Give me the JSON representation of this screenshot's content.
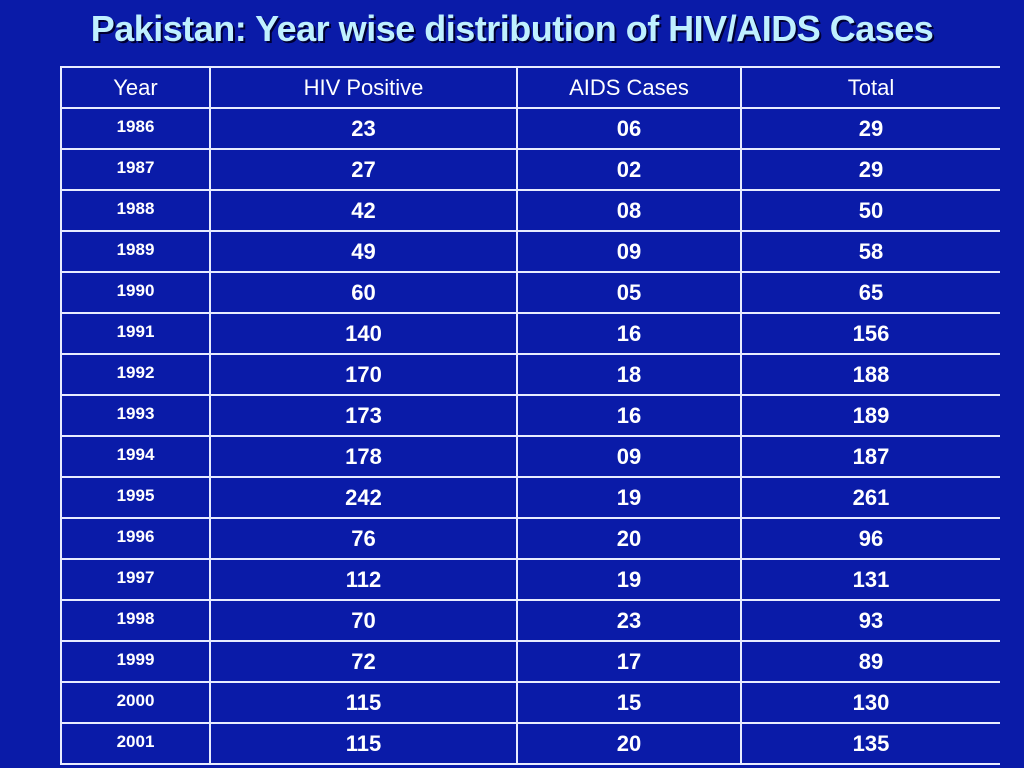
{
  "title": "Pakistan: Year wise distribution of HIV/AIDS Cases",
  "table": {
    "headers": [
      "Year",
      "HIV Positive",
      "AIDS Cases",
      "Total"
    ],
    "rows": [
      [
        "1986",
        "23",
        "06",
        "29"
      ],
      [
        "1987",
        "27",
        "02",
        "29"
      ],
      [
        "1988",
        "42",
        "08",
        "50"
      ],
      [
        "1989",
        "49",
        "09",
        "58"
      ],
      [
        "1990",
        "60",
        "05",
        "65"
      ],
      [
        "1991",
        "140",
        "16",
        "156"
      ],
      [
        "1992",
        "170",
        "18",
        "188"
      ],
      [
        "1993",
        "173",
        "16",
        "189"
      ],
      [
        "1994",
        "178",
        "09",
        "187"
      ],
      [
        "1995",
        "242",
        "19",
        "261"
      ],
      [
        "1996",
        "76",
        "20",
        "96"
      ],
      [
        "1997",
        "112",
        "19",
        "131"
      ],
      [
        "1998",
        "70",
        "23",
        "93"
      ],
      [
        "1999",
        "72",
        "17",
        "89"
      ],
      [
        "2000",
        "115",
        "15",
        "130"
      ],
      [
        "2001",
        "115",
        "20",
        "135"
      ]
    ]
  },
  "colors": {
    "background": "#0a1ba8",
    "title": "#bff0ff",
    "text": "#ffffff",
    "grid": "#e8ecff"
  }
}
